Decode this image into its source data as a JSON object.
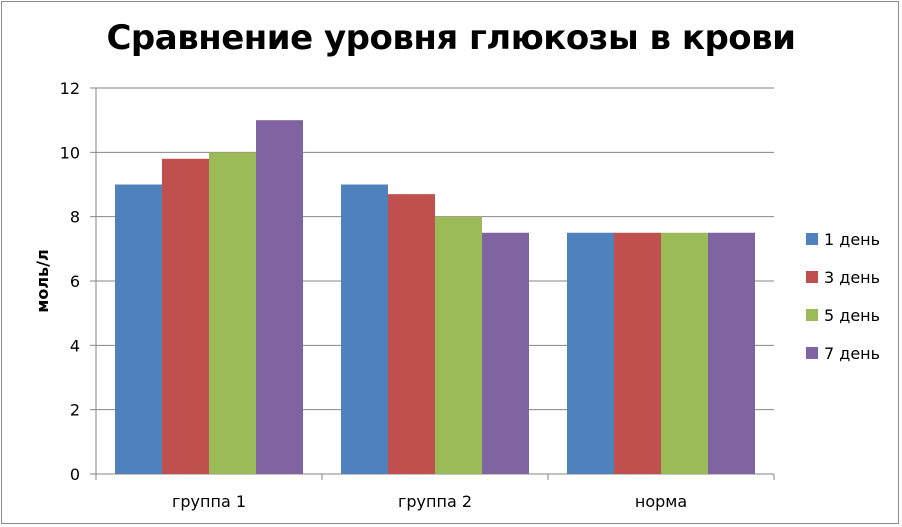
{
  "chart_data": {
    "type": "bar",
    "title": "Сравнение уровня глюкозы в крови",
    "xlabel": "",
    "ylabel": "моль/л",
    "ylim": [
      0,
      12
    ],
    "yticks": [
      "0",
      "2",
      "4",
      "6",
      "8",
      "10",
      "12"
    ],
    "grid": true,
    "legend_position": "right",
    "categories": [
      "группа 1",
      "группа 2",
      "норма"
    ],
    "series": [
      {
        "name": "1 день",
        "color": "#4F81BD",
        "values": [
          9,
          9,
          7.5
        ]
      },
      {
        "name": "3 день",
        "color": "#C0504D",
        "values": [
          9.8,
          8.7,
          7.5
        ]
      },
      {
        "name": "5 день",
        "color": "#9BBB59",
        "values": [
          10,
          8,
          7.5
        ]
      },
      {
        "name": "7 день",
        "color": "#8064A2",
        "values": [
          11,
          7.5,
          7.5
        ]
      }
    ]
  }
}
